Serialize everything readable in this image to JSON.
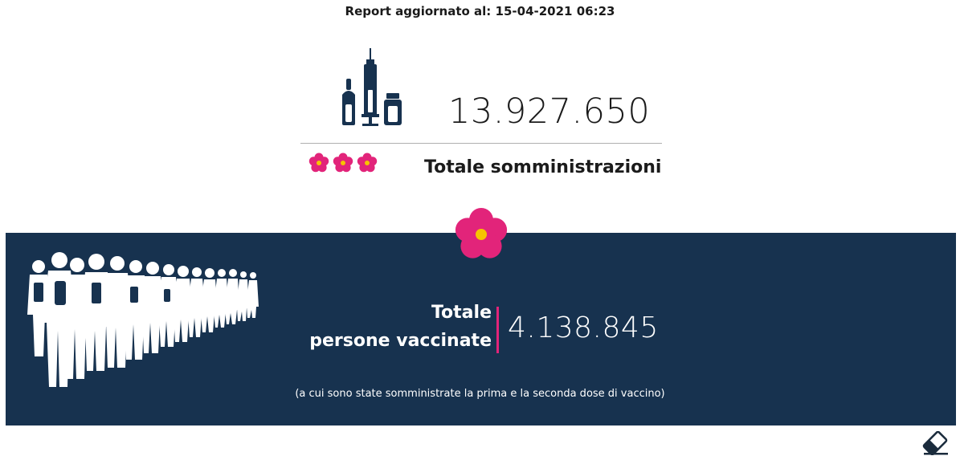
{
  "header": {
    "report_label": "Report aggiornato al: 15-04-2021 06:23"
  },
  "summary": {
    "total_administrations": "13.927.650",
    "total_label": "Totale somministrazioni"
  },
  "vaccinated": {
    "label_line1": "Totale",
    "label_line2": "persone vaccinate",
    "count": "4.138.845",
    "note": "(a cui sono state somministrate la prima e la seconda dose di vaccino)"
  },
  "colors": {
    "navy": "#17324f",
    "accent_pink": "#e2247a",
    "flower_center": "#f6c400"
  },
  "icons": {
    "vaccine": "vaccine-vial-syringe-icon",
    "flower": "primula-flower-icon",
    "people": "people-queue-icon",
    "eraser": "eraser-icon"
  }
}
